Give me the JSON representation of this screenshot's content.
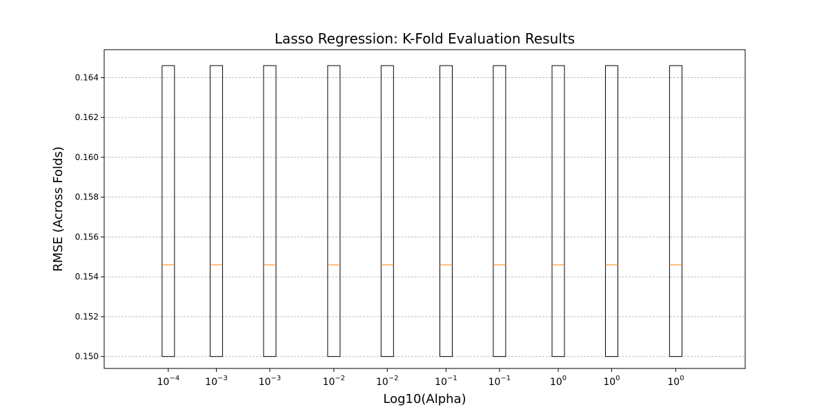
{
  "chart_data": {
    "type": "box",
    "title": "Lasso Regression: K-Fold Evaluation Results",
    "xlabel": "Log10(Alpha)",
    "ylabel": "RMSE (Across Folds)",
    "ylim": [
      0.1494,
      0.1654
    ],
    "yticks": [
      "0.150",
      "0.152",
      "0.154",
      "0.156",
      "0.158",
      "0.160",
      "0.162",
      "0.164"
    ],
    "grid": "y-dashed",
    "categories": [
      {
        "base": "10",
        "exp": "−4",
        "x": -4.0
      },
      {
        "base": "10",
        "exp": "−3",
        "x": -3.1
      },
      {
        "base": "10",
        "exp": "−3",
        "x": -2.1
      },
      {
        "base": "10",
        "exp": "−2",
        "x": -0.9
      },
      {
        "base": "10",
        "exp": "−2",
        "x": 0.1
      },
      {
        "base": "10",
        "exp": "−1",
        "x": 1.2
      },
      {
        "base": "10",
        "exp": "−1",
        "x": 2.2
      },
      {
        "base": "10",
        "exp": "0",
        "x": 3.3
      },
      {
        "base": "10",
        "exp": "0",
        "x": 4.3
      },
      {
        "base": "10",
        "exp": "0",
        "x": 5.5
      }
    ],
    "xlim": [
      -5.2,
      6.8
    ],
    "boxes": [
      {
        "q1": 0.15,
        "median": 0.1546,
        "q3": 0.1646
      },
      {
        "q1": 0.15,
        "median": 0.1546,
        "q3": 0.1646
      },
      {
        "q1": 0.15,
        "median": 0.1546,
        "q3": 0.1646
      },
      {
        "q1": 0.15,
        "median": 0.1546,
        "q3": 0.1646
      },
      {
        "q1": 0.15,
        "median": 0.1546,
        "q3": 0.1646
      },
      {
        "q1": 0.15,
        "median": 0.1546,
        "q3": 0.1646
      },
      {
        "q1": 0.15,
        "median": 0.1546,
        "q3": 0.1646
      },
      {
        "q1": 0.15,
        "median": 0.1546,
        "q3": 0.1646
      },
      {
        "q1": 0.15,
        "median": 0.1546,
        "q3": 0.1646
      },
      {
        "q1": 0.15,
        "median": 0.1546,
        "q3": 0.1646
      }
    ],
    "colors": {
      "box": "#000000",
      "median": "#ff7f0e",
      "grid": "#b0b0b0"
    }
  }
}
